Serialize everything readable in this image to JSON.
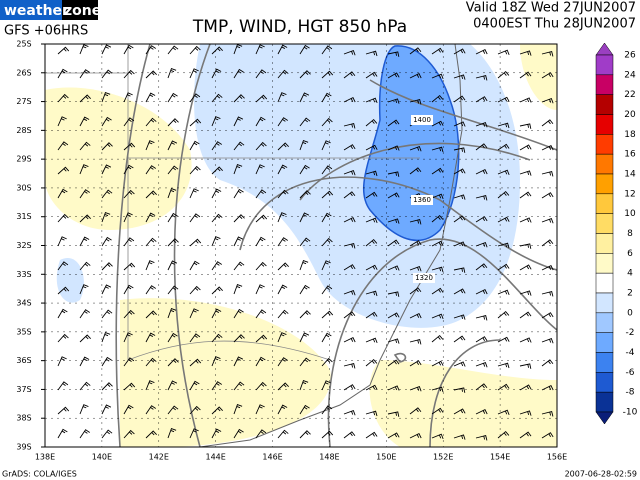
{
  "logo": {
    "left": "weather",
    "right": "zone"
  },
  "header": {
    "model": "GFS +06HRS",
    "title": "TMP, WIND, HGT 850 hPa",
    "valid": "Valid 18Z Wed 27JUN2007",
    "local": "0400EST Thu 28JUN2007"
  },
  "map": {
    "lat_labels": [
      "25S",
      "26S",
      "27S",
      "28S",
      "29S",
      "30S",
      "31S",
      "32S",
      "33S",
      "34S",
      "35S",
      "36S",
      "37S",
      "38S",
      "39S"
    ],
    "lon_labels": [
      "138E",
      "140E",
      "142E",
      "144E",
      "146E",
      "148E",
      "150E",
      "152E",
      "154E",
      "156E"
    ],
    "contour_labels": [
      "1400",
      "1360",
      "1320"
    ]
  },
  "colorbar": {
    "labels": [
      "26",
      "24",
      "22",
      "20",
      "18",
      "16",
      "14",
      "12",
      "10",
      "8",
      "6",
      "4",
      "2",
      "0",
      "-2",
      "-4",
      "-6",
      "-8",
      "-10"
    ],
    "colors": [
      "#9a3fc0",
      "#a03cc8",
      "#c80064",
      "#b40000",
      "#e60000",
      "#ff3c00",
      "#ff7800",
      "#ffa000",
      "#ffc83c",
      "#ffdc64",
      "#fff0a0",
      "#fffac8",
      "#ffffff",
      "#d2e6ff",
      "#a0c8ff",
      "#6eaaff",
      "#3c82f0",
      "#1e5ad2",
      "#0a3296",
      "#0a1e78"
    ]
  },
  "footer": {
    "left": "GrADS: COLA/IGES",
    "right": "2007-06-28-02:59"
  }
}
